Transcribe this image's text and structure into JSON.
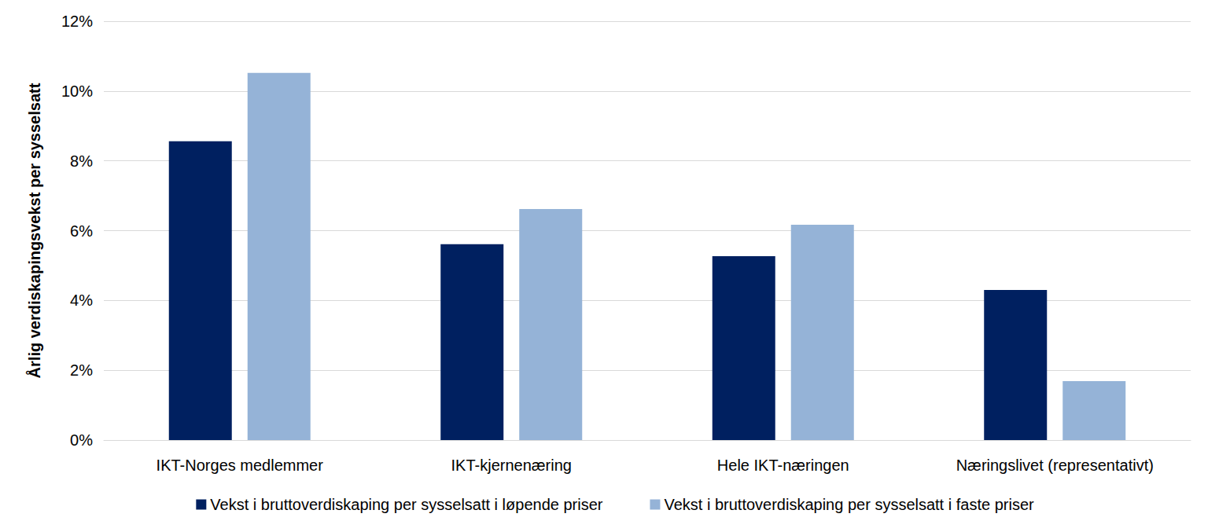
{
  "chart_data": {
    "type": "bar",
    "y_label": "Årlig verdiskapingsvekst per sysselsatt",
    "categories": [
      "IKT-Norges medlemmer",
      "IKT-kjernenæring",
      "Hele IKT-næringen",
      "Næringslivet (representativt)"
    ],
    "series": [
      {
        "name": "Vekst i bruttoverdiskaping per sysselsatt i løpende priser",
        "color": "#002060",
        "values": [
          8.56,
          5.61,
          5.27,
          4.3
        ]
      },
      {
        "name": "Vekst i bruttoverdiskaping per sysselsatt i faste priser",
        "color": "#95B3D7",
        "values": [
          10.52,
          6.62,
          6.17,
          1.69
        ]
      }
    ],
    "ylim": [
      0,
      12
    ],
    "yticks": [
      {
        "value": 0,
        "label": "0%"
      },
      {
        "value": 2,
        "label": "2%"
      },
      {
        "value": 4,
        "label": "4%"
      },
      {
        "value": 6,
        "label": "6%"
      },
      {
        "value": 8,
        "label": "8%"
      },
      {
        "value": 10,
        "label": "10%"
      },
      {
        "value": 12,
        "label": "12%"
      }
    ],
    "grid": true,
    "legend": "bottom"
  }
}
